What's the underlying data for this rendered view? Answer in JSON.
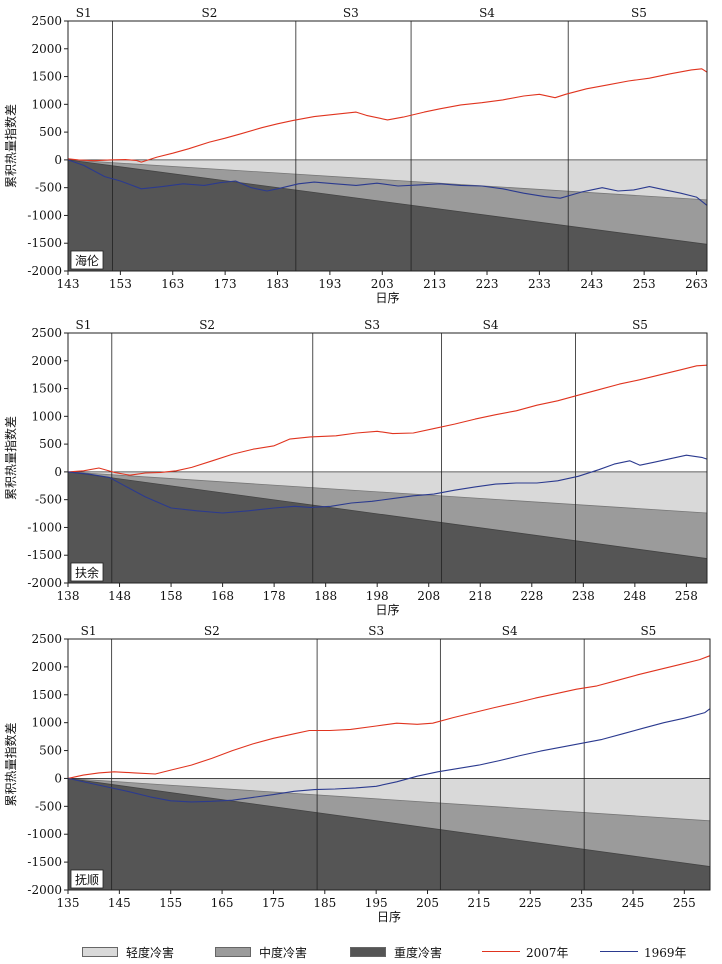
{
  "colors": {
    "light": "#d9d9d9",
    "medium": "#9b9b9b",
    "heavy": "#555555",
    "y2007": "#e0341f",
    "y1969": "#2b3a8f"
  },
  "legend": {
    "light": "轻度冷害",
    "medium": "中度冷害",
    "heavy": "重度冷害",
    "y2007": "2007年",
    "y1969": "1969年"
  },
  "chart_data": [
    {
      "type": "line",
      "station": "海伦",
      "xlabel": "日序",
      "ylabel": "累积热量指数差",
      "xlim": [
        143,
        265
      ],
      "ylim": [
        -2000,
        2500
      ],
      "xticks": [
        143,
        153,
        163,
        173,
        183,
        193,
        203,
        213,
        223,
        233,
        243,
        253,
        263
      ],
      "yticks": [
        -2000,
        -1500,
        -1000,
        -500,
        0,
        500,
        1000,
        1500,
        2000,
        2500
      ],
      "stage_bounds": [
        151.5,
        186.5,
        208.5,
        238.5
      ],
      "stages": [
        {
          "name": "S1",
          "x": 146
        },
        {
          "name": "S2",
          "x": 170
        },
        {
          "name": "S3",
          "x": 197
        },
        {
          "name": "S4",
          "x": 223
        },
        {
          "name": "S5",
          "x": 252
        }
      ],
      "thresholds": {
        "x_start": 143,
        "x_end": 265,
        "light_end": 0,
        "medium_end": -720,
        "heavy_end": -1520
      },
      "series": [
        {
          "name": "2007年",
          "x": [
            143,
            145,
            148,
            151,
            154,
            156,
            157,
            160,
            163,
            166,
            170,
            173,
            176,
            180,
            183,
            186,
            190,
            194,
            198,
            200,
            204,
            207,
            211,
            214,
            218,
            222,
            226,
            230,
            233,
            236,
            238,
            242,
            246,
            250,
            254,
            258,
            262,
            264,
            265
          ],
          "y": [
            20,
            0,
            -15,
            0,
            5,
            -10,
            -40,
            50,
            120,
            200,
            320,
            390,
            470,
            580,
            650,
            710,
            780,
            820,
            860,
            800,
            720,
            770,
            860,
            920,
            990,
            1030,
            1080,
            1150,
            1180,
            1120,
            1180,
            1280,
            1350,
            1420,
            1470,
            1550,
            1620,
            1640,
            1580
          ]
        },
        {
          "name": "1969年",
          "x": [
            143,
            146,
            150,
            153,
            157,
            161,
            165,
            169,
            172,
            175,
            178,
            181,
            183,
            187,
            190,
            194,
            198,
            202,
            206,
            210,
            214,
            218,
            222,
            226,
            230,
            234,
            237,
            241,
            245,
            248,
            251,
            254,
            257,
            260,
            263,
            265
          ],
          "y": [
            0,
            -100,
            -300,
            -380,
            -520,
            -480,
            -430,
            -460,
            -410,
            -380,
            -500,
            -560,
            -520,
            -430,
            -400,
            -430,
            -460,
            -420,
            -470,
            -450,
            -430,
            -460,
            -470,
            -520,
            -600,
            -660,
            -690,
            -580,
            -500,
            -560,
            -540,
            -480,
            -540,
            -600,
            -670,
            -820
          ]
        }
      ]
    },
    {
      "type": "line",
      "station": "扶余",
      "xlabel": "日序",
      "ylabel": "累积热量指数差",
      "xlim": [
        138,
        262
      ],
      "ylim": [
        -2000,
        2500
      ],
      "xticks": [
        138,
        148,
        158,
        168,
        178,
        188,
        198,
        208,
        218,
        228,
        238,
        248,
        258
      ],
      "yticks": [
        -2000,
        -1500,
        -1000,
        -500,
        0,
        500,
        1000,
        1500,
        2000,
        2500
      ],
      "stage_bounds": [
        146.5,
        185.5,
        210.5,
        236.5
      ],
      "stages": [
        {
          "name": "S1",
          "x": 141
        },
        {
          "name": "S2",
          "x": 165
        },
        {
          "name": "S3",
          "x": 197
        },
        {
          "name": "S4",
          "x": 220
        },
        {
          "name": "S5",
          "x": 249
        }
      ],
      "thresholds": {
        "x_start": 138,
        "x_end": 262,
        "light_end": 0,
        "medium_end": -740,
        "heavy_end": -1560
      },
      "series": [
        {
          "name": "2007年",
          "x": [
            138,
            141,
            144,
            147,
            150,
            153,
            156,
            159,
            162,
            166,
            170,
            174,
            178,
            181,
            185,
            190,
            194,
            198,
            201,
            205,
            209,
            213,
            217,
            221,
            225,
            229,
            233,
            237,
            241,
            245,
            249,
            253,
            257,
            260,
            262
          ],
          "y": [
            0,
            20,
            70,
            -10,
            -60,
            -20,
            -10,
            20,
            80,
            200,
            320,
            410,
            470,
            590,
            630,
            650,
            700,
            730,
            690,
            700,
            780,
            860,
            950,
            1030,
            1100,
            1200,
            1280,
            1380,
            1480,
            1580,
            1660,
            1750,
            1840,
            1910,
            1920
          ]
        },
        {
          "name": "1969年",
          "x": [
            138,
            142,
            146,
            149,
            153,
            158,
            163,
            168,
            173,
            178,
            182,
            185,
            189,
            193,
            197,
            201,
            205,
            209,
            213,
            217,
            221,
            225,
            229,
            233,
            237,
            241,
            244,
            247,
            249,
            252,
            255,
            258,
            261,
            262
          ],
          "y": [
            0,
            -40,
            -100,
            -250,
            -450,
            -650,
            -700,
            -740,
            -700,
            -650,
            -620,
            -640,
            -620,
            -560,
            -530,
            -480,
            -430,
            -400,
            -330,
            -270,
            -220,
            -200,
            -200,
            -160,
            -80,
            40,
            140,
            200,
            120,
            180,
            240,
            300,
            260,
            230
          ]
        }
      ]
    },
    {
      "type": "line",
      "station": "抚顺",
      "xlabel": "日序",
      "ylabel": "累积热量指数差",
      "xlim": [
        135,
        260
      ],
      "ylim": [
        -2000,
        2500
      ],
      "xticks": [
        135,
        145,
        155,
        165,
        175,
        185,
        195,
        205,
        215,
        225,
        235,
        245,
        255
      ],
      "yticks": [
        -2000,
        -1500,
        -1000,
        -500,
        0,
        500,
        1000,
        1500,
        2000,
        2500
      ],
      "stage_bounds": [
        143.5,
        183.5,
        207.5,
        235.5
      ],
      "stages": [
        {
          "name": "S1",
          "x": 139
        },
        {
          "name": "S2",
          "x": 163
        },
        {
          "name": "S3",
          "x": 195
        },
        {
          "name": "S4",
          "x": 221
        },
        {
          "name": "S5",
          "x": 248
        }
      ],
      "thresholds": {
        "x_start": 135,
        "x_end": 260,
        "light_end": 0,
        "medium_end": -760,
        "heavy_end": -1580
      },
      "series": [
        {
          "name": "2007年",
          "x": [
            135,
            138,
            141,
            144,
            148,
            152,
            155,
            159,
            163,
            167,
            171,
            175,
            179,
            182,
            186,
            190,
            195,
            199,
            203,
            206,
            210,
            214,
            218,
            222,
            226,
            230,
            234,
            238,
            242,
            246,
            250,
            254,
            258,
            260
          ],
          "y": [
            0,
            60,
            100,
            120,
            100,
            80,
            150,
            240,
            360,
            500,
            620,
            720,
            800,
            860,
            860,
            880,
            940,
            990,
            970,
            990,
            1090,
            1180,
            1270,
            1350,
            1440,
            1520,
            1600,
            1660,
            1760,
            1860,
            1950,
            2040,
            2130,
            2200
          ]
        },
        {
          "name": "1969年",
          "x": [
            135,
            139,
            143,
            147,
            151,
            155,
            159,
            163,
            167,
            171,
            175,
            179,
            183,
            187,
            191,
            195,
            199,
            203,
            207,
            211,
            215,
            219,
            223,
            227,
            231,
            235,
            239,
            243,
            247,
            251,
            255,
            259,
            260
          ],
          "y": [
            0,
            -80,
            -160,
            -240,
            -330,
            -400,
            -420,
            -410,
            -390,
            -340,
            -290,
            -230,
            -200,
            -190,
            -170,
            -140,
            -60,
            40,
            120,
            180,
            240,
            320,
            410,
            490,
            560,
            630,
            700,
            800,
            900,
            1000,
            1080,
            1180,
            1250
          ]
        }
      ]
    }
  ]
}
